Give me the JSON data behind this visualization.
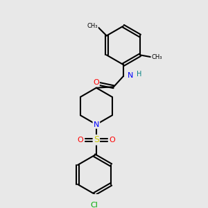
{
  "bg_color": "#e8e8e8",
  "bond_color": "#000000",
  "bond_width": 1.5,
  "atom_colors": {
    "C": "#000000",
    "N": "#0000ff",
    "O": "#ff0000",
    "S": "#cccc00",
    "Cl": "#00aa00",
    "H": "#008080"
  },
  "figsize": [
    3.0,
    3.0
  ],
  "dpi": 100
}
